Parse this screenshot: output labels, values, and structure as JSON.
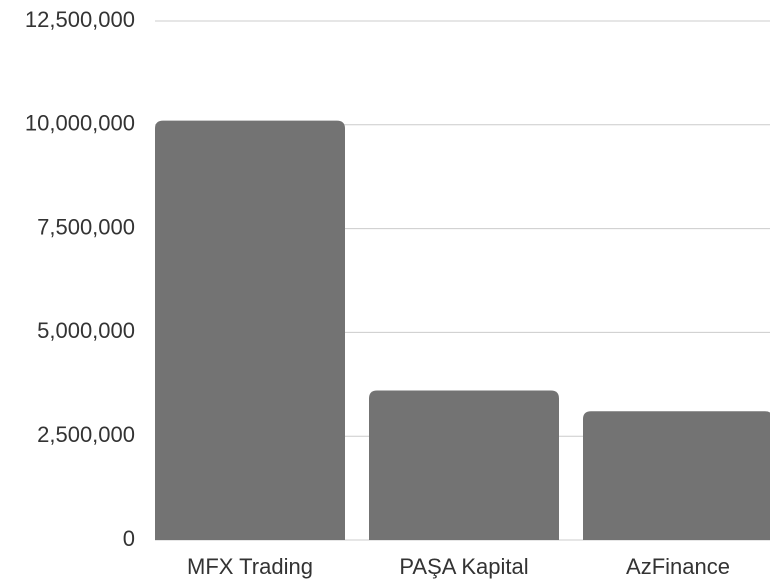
{
  "chart_data": {
    "type": "bar",
    "categories": [
      "MFX Trading",
      "PAŞA Kapital",
      "AzFinance"
    ],
    "values": [
      10100000,
      3600000,
      3100000
    ],
    "color": "#737373",
    "ylim": [
      0,
      12500000
    ],
    "yticks": [
      0,
      {
        "value": 2500000,
        "label": "2,500,000"
      },
      {
        "value": 5000000,
        "label": "5,000,000"
      },
      {
        "value": 7500000,
        "label": "7,500,000"
      },
      {
        "value": 10000000,
        "label": "10,000,000"
      },
      {
        "value": 12500000,
        "label": "12,500,000"
      }
    ],
    "grid": true
  }
}
